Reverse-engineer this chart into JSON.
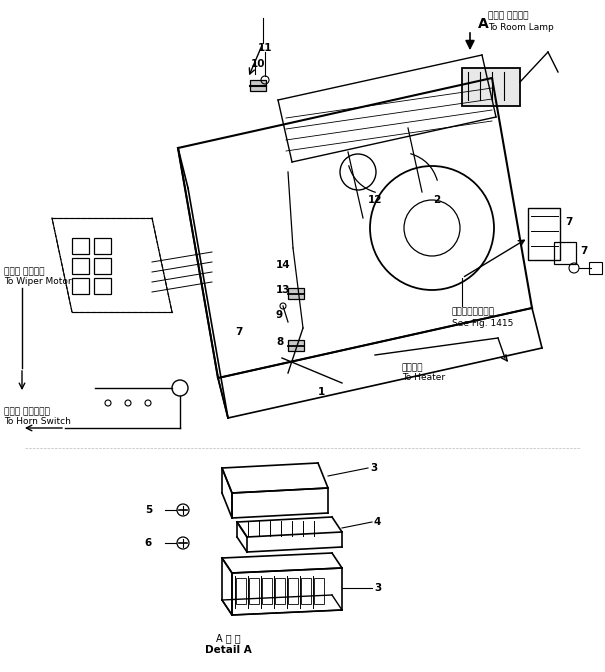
{
  "bg_color": "#ffffff",
  "line_color": "#000000",
  "fig_width": 6.05,
  "fig_height": 6.72,
  "labels": {
    "room_lamp_jp": "ルーム ランプへ",
    "room_lamp_en": "To Room Lamp",
    "wiper_motor_jp": "ワイパ モータへ",
    "wiper_motor_en": "To Wiper Motor",
    "horn_switch_jp": "ホーン スイッチへ",
    "horn_switch_en": "To Horn Switch",
    "heater_jp": "ヒータへ",
    "heater_en": "To Heater",
    "see_fig_jp": "第１４１５図参照",
    "see_fig_en": "See Fig. 1415",
    "detail_a_jp": "A 詳 図",
    "detail_a_en": "Detail A",
    "label_A": "A"
  }
}
